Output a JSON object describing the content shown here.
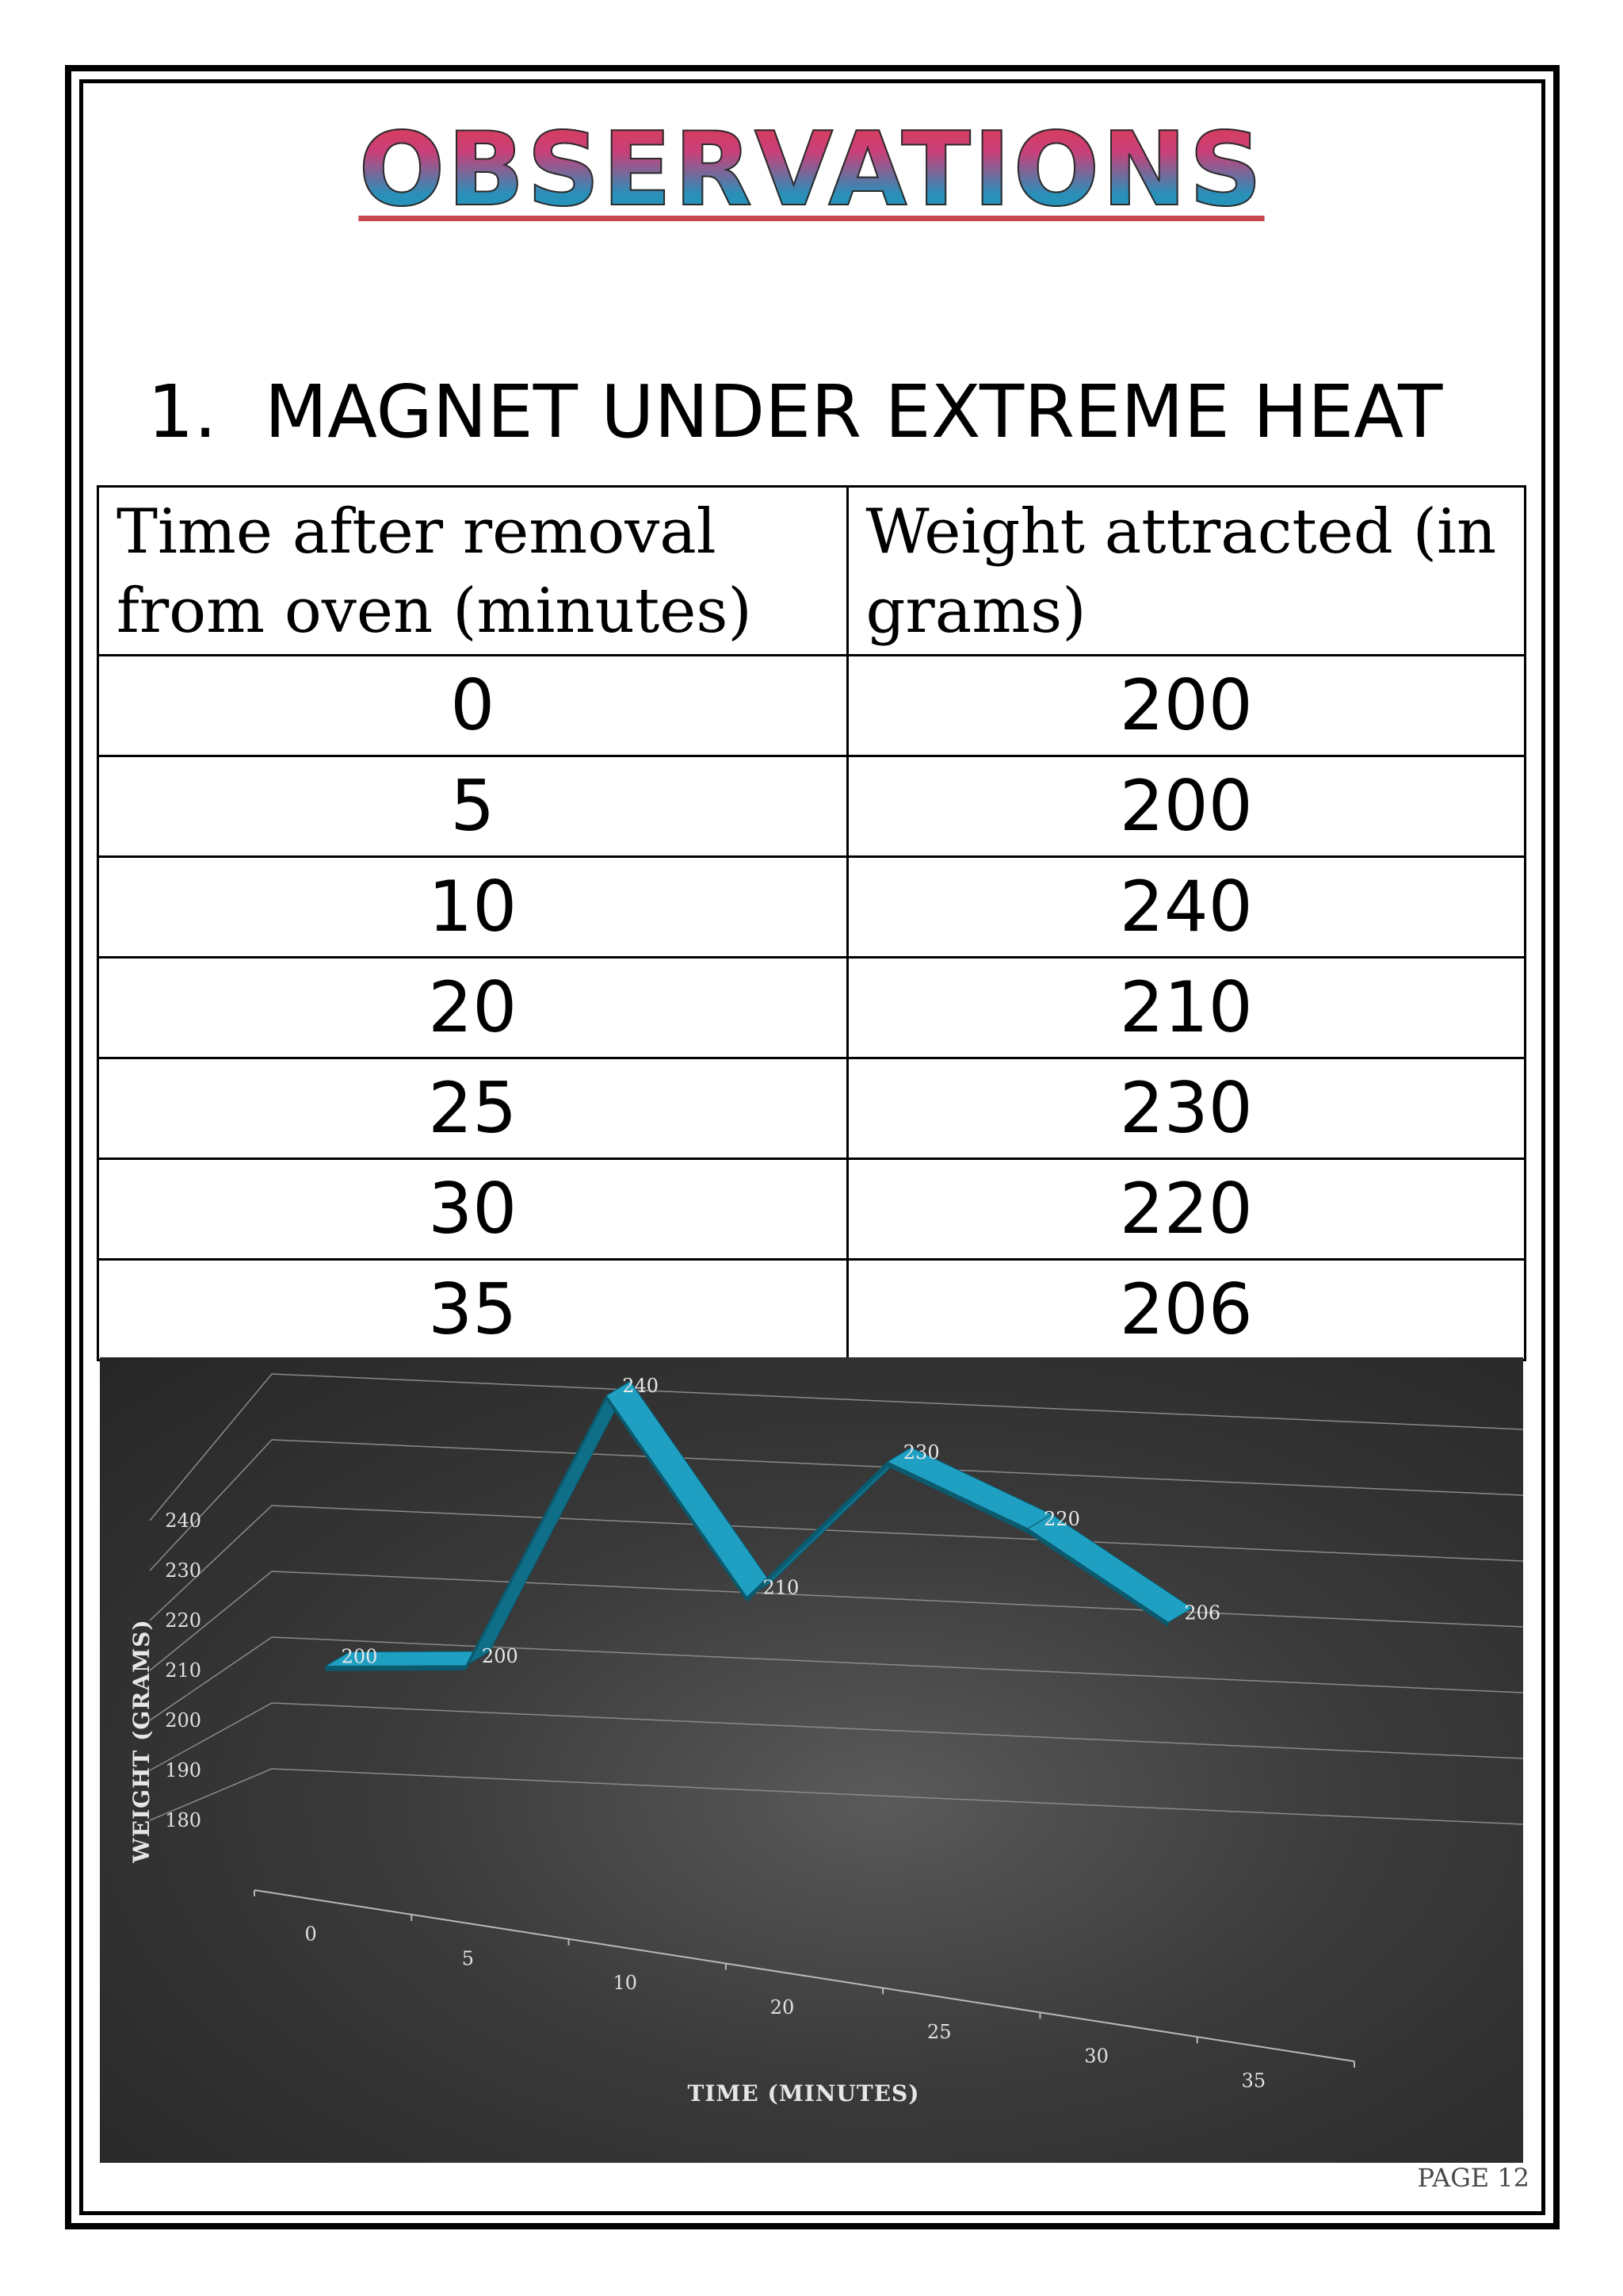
{
  "page": {
    "title": "OBSERVATIONS",
    "section_number": "1.",
    "section_title": "MAGNET UNDER EXTREME HEAT",
    "page_number": "PAGE 12"
  },
  "table": {
    "headers": [
      "Time after removal from oven (minutes)",
      "Weight attracted (in grams)"
    ],
    "rows": [
      [
        "0",
        "200"
      ],
      [
        "5",
        "200"
      ],
      [
        "10",
        "240"
      ],
      [
        "20",
        "210"
      ],
      [
        "25",
        "230"
      ],
      [
        "30",
        "220"
      ],
      [
        "35",
        "206"
      ]
    ]
  },
  "chart_data": {
    "type": "line",
    "style": "3d-ribbon",
    "categories": [
      "0",
      "5",
      "10",
      "20",
      "25",
      "30",
      "35"
    ],
    "series": [
      {
        "values": [
          200,
          200,
          240,
          210,
          230,
          220,
          206
        ]
      }
    ],
    "xlabel": "TIME (MINUTES)",
    "ylabel": "WEIGHT (GRAMS)",
    "ylim": [
      180,
      240
    ],
    "yticks": [
      180,
      190,
      200,
      210,
      220,
      230,
      240
    ],
    "grid": true,
    "legend": "none",
    "colors": {
      "series": "#1e9fbf",
      "background": "#3a3a3a"
    }
  }
}
